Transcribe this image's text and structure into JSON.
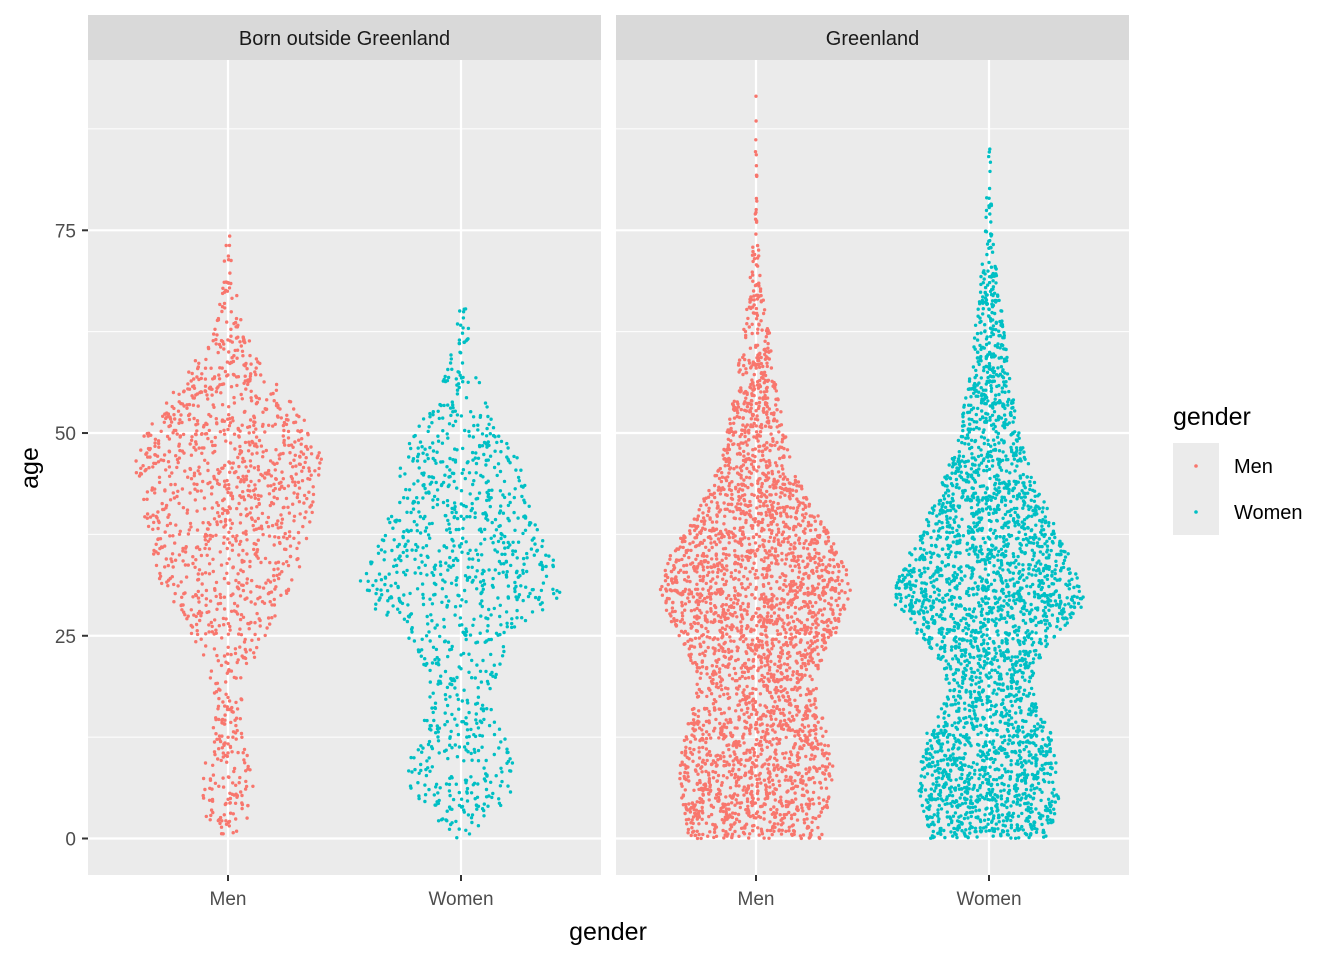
{
  "chart_data": {
    "type": "scatter",
    "subtype": "beeswarm",
    "title": "",
    "xlabel": "gender",
    "ylabel": "age",
    "ylim": [
      -4.5,
      96
    ],
    "y_ticks": [
      0,
      25,
      50,
      75
    ],
    "categories": [
      "Men",
      "Women"
    ],
    "grid": true,
    "legend": {
      "title": "gender",
      "position": "right",
      "entries": [
        {
          "label": "Men",
          "color": "#F8766D"
        },
        {
          "label": "Women",
          "color": "#00BFC4"
        }
      ]
    },
    "facets": [
      {
        "label": "Born outside Greenland",
        "groups": [
          {
            "name": "Men",
            "color": "#F8766D",
            "point_count": 1300,
            "age_range": [
              0,
              76
            ],
            "width_profile": [
              [
                0,
                0.06
              ],
              [
                3,
                0.22
              ],
              [
                6,
                0.24
              ],
              [
                9,
                0.22
              ],
              [
                12,
                0.16
              ],
              [
                16,
                0.13
              ],
              [
                20,
                0.18
              ],
              [
                24,
                0.3
              ],
              [
                27,
                0.45
              ],
              [
                31,
                0.62
              ],
              [
                36,
                0.72
              ],
              [
                42,
                0.82
              ],
              [
                47,
                0.88
              ],
              [
                52,
                0.7
              ],
              [
                57,
                0.4
              ],
              [
                61,
                0.22
              ],
              [
                65,
                0.12
              ],
              [
                68,
                0.07
              ],
              [
                72,
                0.03
              ],
              [
                76,
                0.01
              ]
            ]
          },
          {
            "name": "Women",
            "color": "#00BFC4",
            "point_count": 1050,
            "age_range": [
              0,
              70
            ],
            "width_profile": [
              [
                0,
                0.04
              ],
              [
                2,
                0.2
              ],
              [
                5,
                0.46
              ],
              [
                8,
                0.52
              ],
              [
                11,
                0.46
              ],
              [
                14,
                0.35
              ],
              [
                18,
                0.32
              ],
              [
                22,
                0.38
              ],
              [
                26,
                0.55
              ],
              [
                29,
                0.9
              ],
              [
                32,
                0.95
              ],
              [
                36,
                0.8
              ],
              [
                40,
                0.66
              ],
              [
                44,
                0.6
              ],
              [
                48,
                0.52
              ],
              [
                52,
                0.35
              ],
              [
                56,
                0.18
              ],
              [
                60,
                0.1
              ],
              [
                64,
                0.06
              ],
              [
                67,
                0.03
              ],
              [
                70,
                0.01
              ]
            ]
          }
        ]
      },
      {
        "label": "Greenland",
        "groups": [
          {
            "name": "Men",
            "color": "#F8766D",
            "point_count": 3200,
            "age_range": [
              0,
              92
            ],
            "width_profile": [
              [
                0,
                0.62
              ],
              [
                2,
                0.66
              ],
              [
                5,
                0.7
              ],
              [
                9,
                0.72
              ],
              [
                13,
                0.66
              ],
              [
                17,
                0.58
              ],
              [
                20,
                0.56
              ],
              [
                23,
                0.64
              ],
              [
                27,
                0.82
              ],
              [
                31,
                0.9
              ],
              [
                35,
                0.8
              ],
              [
                39,
                0.62
              ],
              [
                43,
                0.44
              ],
              [
                47,
                0.32
              ],
              [
                51,
                0.26
              ],
              [
                55,
                0.2
              ],
              [
                59,
                0.16
              ],
              [
                63,
                0.12
              ],
              [
                67,
                0.07
              ],
              [
                71,
                0.04
              ],
              [
                75,
                0.02
              ],
              [
                80,
                0.01
              ],
              [
                88,
                0.005
              ],
              [
                92,
                0.002
              ]
            ]
          },
          {
            "name": "Women",
            "color": "#00BFC4",
            "point_count": 3200,
            "age_range": [
              0,
              87
            ],
            "width_profile": [
              [
                0,
                0.55
              ],
              [
                2,
                0.6
              ],
              [
                5,
                0.66
              ],
              [
                9,
                0.64
              ],
              [
                13,
                0.58
              ],
              [
                16,
                0.45
              ],
              [
                19,
                0.4
              ],
              [
                22,
                0.46
              ],
              [
                25,
                0.66
              ],
              [
                29,
                0.9
              ],
              [
                33,
                0.84
              ],
              [
                37,
                0.66
              ],
              [
                41,
                0.54
              ],
              [
                45,
                0.4
              ],
              [
                49,
                0.3
              ],
              [
                53,
                0.24
              ],
              [
                57,
                0.2
              ],
              [
                61,
                0.16
              ],
              [
                65,
                0.12
              ],
              [
                69,
                0.08
              ],
              [
                73,
                0.05
              ],
              [
                77,
                0.03
              ],
              [
                81,
                0.02
              ],
              [
                85,
                0.01
              ],
              [
                87,
                0.004
              ]
            ]
          }
        ]
      }
    ]
  }
}
